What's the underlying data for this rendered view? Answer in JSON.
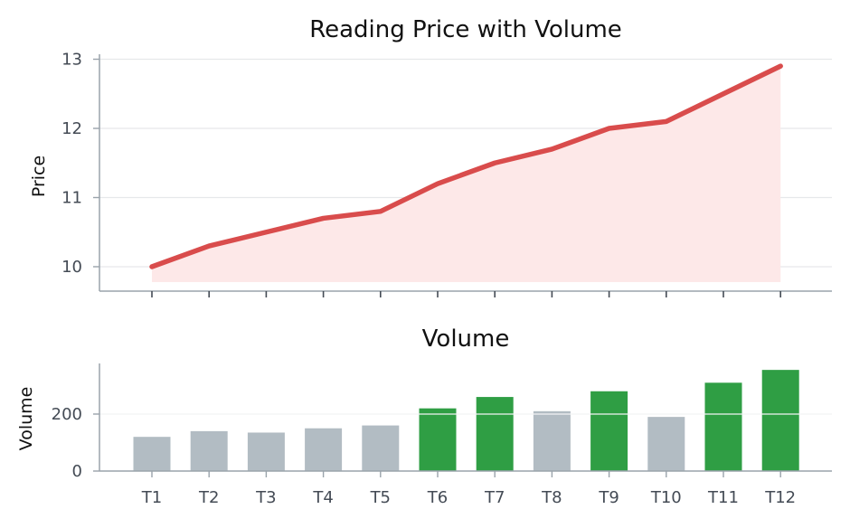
{
  "chart_data": [
    {
      "type": "area",
      "title": "Reading Price with Volume",
      "xlabel": "",
      "ylabel": "Price",
      "categories": [
        "T1",
        "T2",
        "T3",
        "T4",
        "T5",
        "T6",
        "T7",
        "T8",
        "T9",
        "T10",
        "T11",
        "T12"
      ],
      "values": [
        10.0,
        10.3,
        10.5,
        10.7,
        10.8,
        11.2,
        11.5,
        11.7,
        12.0,
        12.1,
        12.5,
        12.9
      ],
      "ylim": [
        9.75,
        13.05
      ],
      "yticks": [
        "10",
        "11",
        "12",
        "13"
      ],
      "grid": true,
      "colors": {
        "line": "#d94c4c",
        "fill": "#fde8e8",
        "grid": "#e6e8ea",
        "axis": "#9aa3ab"
      }
    },
    {
      "type": "bar",
      "title": "Volume",
      "xlabel": "",
      "ylabel": "Volume",
      "categories": [
        "T1",
        "T2",
        "T3",
        "T4",
        "T5",
        "T6",
        "T7",
        "T8",
        "T9",
        "T10",
        "T11",
        "T12"
      ],
      "values": [
        120,
        140,
        135,
        150,
        160,
        220,
        260,
        210,
        280,
        190,
        310,
        355
      ],
      "ylim": [
        0,
        375
      ],
      "yticks": [
        "0",
        "200"
      ],
      "grid": true,
      "colors": {
        "up": "#2f9e44",
        "down": "#b2bcc3",
        "grid": "#e6e8ea",
        "axis": "#9aa3ab"
      }
    }
  ]
}
